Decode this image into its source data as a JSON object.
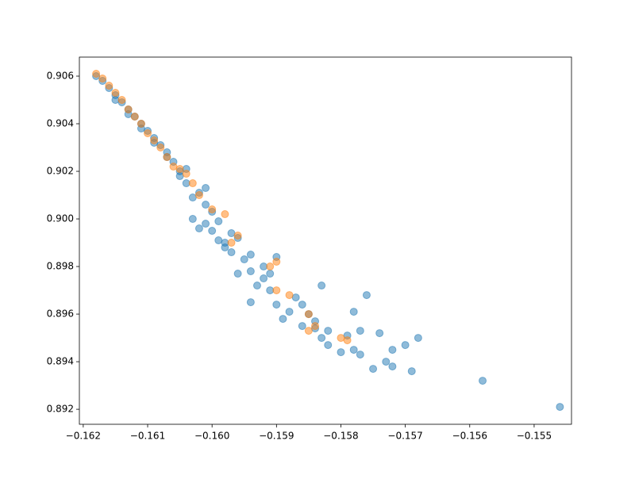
{
  "chart_data": {
    "type": "scatter",
    "xlim": [
      -0.16206,
      -0.15442
    ],
    "ylim": [
      0.89137,
      0.9068
    ],
    "xticks": [
      {
        "value": -0.162,
        "label": "−0.162"
      },
      {
        "value": -0.161,
        "label": "−0.161"
      },
      {
        "value": -0.16,
        "label": "−0.160"
      },
      {
        "value": -0.159,
        "label": "−0.159"
      },
      {
        "value": -0.158,
        "label": "−0.158"
      },
      {
        "value": -0.157,
        "label": "−0.157"
      },
      {
        "value": -0.156,
        "label": "−0.156"
      },
      {
        "value": -0.155,
        "label": "−0.155"
      }
    ],
    "yticks": [
      0.892,
      0.894,
      0.896,
      0.898,
      {
        "value": 0.9,
        "label": "0.900"
      },
      0.902,
      0.904,
      0.906
    ],
    "alpha": 0.5,
    "series": [
      {
        "color": "#1f77b4",
        "x": [
          -0.1546,
          -0.1558,
          -0.1569,
          -0.1568,
          -0.157,
          -0.1572,
          -0.1572,
          -0.1573,
          -0.1574,
          -0.1575,
          -0.1577,
          -0.1576,
          -0.1578,
          -0.1577,
          -0.1578,
          -0.1579,
          -0.158,
          -0.1582,
          -0.1583,
          -0.1583,
          -0.1582,
          -0.1584,
          -0.1584,
          -0.1585,
          -0.1586,
          -0.1587,
          -0.1586,
          -0.1588,
          -0.1589,
          -0.159,
          -0.159,
          -0.1591,
          -0.1592,
          -0.1593,
          -0.1594,
          -0.1594,
          -0.1595,
          -0.1596,
          -0.1597,
          -0.1598,
          -0.1599,
          -0.16,
          -0.1601,
          -0.1602,
          -0.1603,
          -0.1596,
          -0.1599,
          -0.1601,
          -0.1604,
          -0.1605,
          -0.1606,
          -0.1607,
          -0.1608,
          -0.1609,
          -0.161,
          -0.1611,
          -0.1612,
          -0.1613,
          -0.1614,
          -0.1615,
          -0.1616,
          -0.1617,
          -0.1618,
          -0.1603,
          -0.16,
          -0.1597,
          -0.1594,
          -0.1592,
          -0.1591,
          -0.1598,
          -0.1602,
          -0.1605,
          -0.1607,
          -0.1609,
          -0.1611,
          -0.1613,
          -0.1615,
          -0.1604,
          -0.1601
        ],
        "values": [
          0.8921,
          0.8932,
          0.8936,
          0.895,
          0.8947,
          0.8938,
          0.8945,
          0.894,
          0.8952,
          0.8937,
          0.8943,
          0.8968,
          0.8961,
          0.8953,
          0.8945,
          0.8951,
          0.8944,
          0.8947,
          0.895,
          0.8972,
          0.8953,
          0.8954,
          0.8957,
          0.896,
          0.8964,
          0.8967,
          0.8955,
          0.8961,
          0.8958,
          0.8964,
          0.8984,
          0.897,
          0.8975,
          0.8972,
          0.8965,
          0.8978,
          0.8983,
          0.8977,
          0.8986,
          0.8988,
          0.8991,
          0.8995,
          0.8998,
          0.8996,
          0.9,
          0.8992,
          0.8999,
          0.9006,
          0.9015,
          0.902,
          0.9024,
          0.9028,
          0.9031,
          0.9034,
          0.9037,
          0.904,
          0.9043,
          0.9046,
          0.9049,
          0.9052,
          0.9055,
          0.9058,
          0.906,
          0.9009,
          0.9003,
          0.8994,
          0.8985,
          0.898,
          0.8977,
          0.899,
          0.9011,
          0.9018,
          0.9026,
          0.9032,
          0.9038,
          0.9044,
          0.905,
          0.9021,
          0.9013
        ]
      },
      {
        "color": "#ff7f0e",
        "x": [
          -0.159,
          -0.1591,
          -0.159,
          -0.1588,
          -0.1585,
          -0.1584,
          -0.1585,
          -0.1579,
          -0.158,
          -0.1596,
          -0.1597,
          -0.1598,
          -0.1602,
          -0.16,
          -0.1604,
          -0.1606,
          -0.1607,
          -0.1608,
          -0.1609,
          -0.161,
          -0.1611,
          -0.1612,
          -0.1613,
          -0.1614,
          -0.1615,
          -0.1616,
          -0.1617,
          -0.1618,
          -0.1605,
          -0.1603
        ],
        "values": [
          0.8982,
          0.898,
          0.897,
          0.8968,
          0.896,
          0.8955,
          0.8953,
          0.8949,
          0.895,
          0.8993,
          0.899,
          0.9002,
          0.901,
          0.9004,
          0.9019,
          0.9022,
          0.9026,
          0.903,
          0.9033,
          0.9036,
          0.904,
          0.9043,
          0.9046,
          0.905,
          0.9053,
          0.9056,
          0.9059,
          0.9061,
          0.9021,
          0.9015
        ]
      }
    ]
  }
}
